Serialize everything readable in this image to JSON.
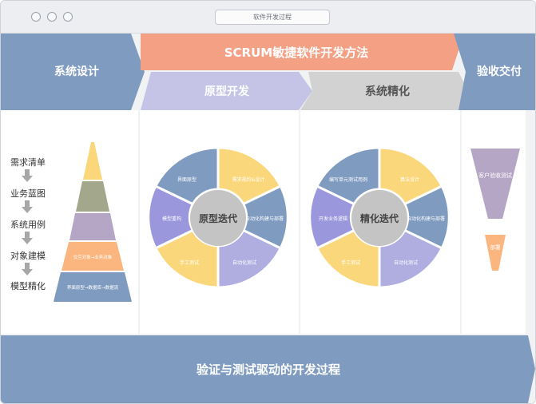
{
  "window": {
    "address": "软件开发过程"
  },
  "header": {
    "left": "系统设计",
    "center": "SCRUM敏捷软件开发方法",
    "right": "验收交付"
  },
  "phases": {
    "prototype": "原型开发",
    "refine": "系统精化"
  },
  "steps": [
    "需求清单",
    "业务蓝图",
    "系统用例",
    "对象建模",
    "模型精化"
  ],
  "pyramid": {
    "layer4": "交互对象→业务对象",
    "layer5": "界面原型→数据库→数据流"
  },
  "cycle1": {
    "center": "原型迭代",
    "segments": [
      "界面原型",
      "需求规约&设计",
      "自动化构建与部署",
      "自动化测试",
      "手工测试",
      "模型重构"
    ]
  },
  "cycle2": {
    "center": "精化迭代",
    "segments": [
      "编写单元测试用例",
      "算法设计",
      "自动化构建与部署",
      "自动化测试",
      "手工测试",
      "开发业务逻辑"
    ]
  },
  "delivery": {
    "customer": "客户验收测试",
    "deploy": "部署"
  },
  "footer": "验证与测试驱动的开发过程",
  "colors": {
    "blue": "#7f9bc0",
    "salmon": "#f3a084",
    "lavender": "#c5c4e6",
    "gray": "#d2d2d2",
    "yellow": "#fad77b",
    "purple": "#b5a6c6",
    "orange": "#fbb680",
    "olive": "#a3a78c"
  }
}
